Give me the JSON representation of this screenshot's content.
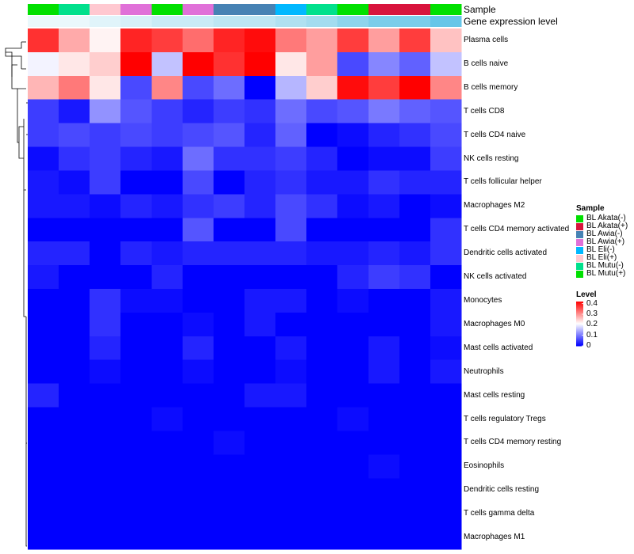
{
  "chart_data": {
    "type": "heatmap",
    "title": "",
    "colormap": [
      "#0000FF",
      "#FFFFFF",
      "#FF0000"
    ],
    "annotations": [
      {
        "label": "Sample"
      },
      {
        "label": "Gene expression level"
      }
    ],
    "columns": [
      {
        "sample_color": "#00E000",
        "level_color": "#EAF8FC"
      },
      {
        "sample_color": "#00E08C",
        "level_color": "#EAF8FC"
      },
      {
        "sample_color": "#FFC8D0",
        "level_color": "#E0F4FA"
      },
      {
        "sample_color": "#E070D8",
        "level_color": "#D6F0F8"
      },
      {
        "sample_color": "#00E000",
        "level_color": "#C9EBF6"
      },
      {
        "sample_color": "#E070D8",
        "level_color": "#C9EBF6"
      },
      {
        "sample_color": "#4682B4",
        "level_color": "#BDE6F3"
      },
      {
        "sample_color": "#4682B4",
        "level_color": "#BDE6F3"
      },
      {
        "sample_color": "#00B8FF",
        "level_color": "#B0E1F1"
      },
      {
        "sample_color": "#00E08C",
        "level_color": "#A4DCEF"
      },
      {
        "sample_color": "#00E000",
        "level_color": "#8FD4EC"
      },
      {
        "sample_color": "#D8143C",
        "level_color": "#7CCDEA"
      },
      {
        "sample_color": "#D8143C",
        "level_color": "#7CCDEA"
      },
      {
        "sample_color": "#00E000",
        "level_color": "#66C6E8"
      }
    ],
    "rows": [
      "Plasma cells",
      "B cells naive",
      "B cells memory",
      "T cells CD8",
      "T cells CD4 naive",
      "NK cells resting",
      "T cells follicular helper",
      "Macrophages M2",
      "T cells CD4 memory activated",
      "Dendritic cells activated",
      "NK cells activated",
      "Monocytes",
      "Macrophages M0",
      "Mast cells activated",
      "Neutrophils",
      "Mast cells resting",
      "T cells regulatory  Tregs",
      "T cells CD4 memory resting",
      "Eosinophils",
      "Dendritic cells resting",
      "T cells gamma delta",
      "Macrophages M1"
    ],
    "values": [
      [
        0.38,
        0.28,
        0.22,
        0.39,
        0.37,
        0.33,
        0.39,
        0.41,
        0.32,
        0.29,
        0.37,
        0.29,
        0.37,
        0.26
      ],
      [
        0.2,
        0.23,
        0.25,
        0.42,
        0.16,
        0.42,
        0.38,
        0.42,
        0.23,
        0.29,
        0.06,
        0.11,
        0.08,
        0.16
      ],
      [
        0.27,
        0.32,
        0.23,
        0.06,
        0.31,
        0.06,
        0.09,
        0.0,
        0.15,
        0.25,
        0.41,
        0.37,
        0.42,
        0.31
      ],
      [
        0.05,
        0.02,
        0.12,
        0.07,
        0.05,
        0.03,
        0.05,
        0.04,
        0.09,
        0.06,
        0.07,
        0.1,
        0.08,
        0.07
      ],
      [
        0.05,
        0.06,
        0.05,
        0.06,
        0.05,
        0.06,
        0.07,
        0.03,
        0.08,
        0.0,
        0.01,
        0.03,
        0.04,
        0.06
      ],
      [
        0.01,
        0.04,
        0.05,
        0.03,
        0.02,
        0.09,
        0.04,
        0.04,
        0.05,
        0.03,
        0.0,
        0.01,
        0.01,
        0.05
      ],
      [
        0.02,
        0.01,
        0.05,
        0.0,
        0.0,
        0.06,
        0.0,
        0.03,
        0.04,
        0.02,
        0.02,
        0.04,
        0.03,
        0.03
      ],
      [
        0.02,
        0.02,
        0.01,
        0.03,
        0.02,
        0.04,
        0.05,
        0.03,
        0.06,
        0.04,
        0.01,
        0.02,
        0.0,
        0.01
      ],
      [
        0.0,
        0.0,
        0.0,
        0.0,
        0.0,
        0.07,
        0.0,
        0.0,
        0.06,
        0.0,
        0.0,
        0.0,
        0.0,
        0.04
      ],
      [
        0.03,
        0.03,
        0.0,
        0.03,
        0.02,
        0.03,
        0.03,
        0.03,
        0.03,
        0.02,
        0.02,
        0.03,
        0.02,
        0.04
      ],
      [
        0.02,
        0.0,
        0.0,
        0.0,
        0.03,
        0.0,
        0.0,
        0.0,
        0.0,
        0.0,
        0.03,
        0.05,
        0.04,
        0.0
      ],
      [
        0.0,
        0.0,
        0.04,
        0.01,
        0.01,
        0.0,
        0.0,
        0.02,
        0.02,
        0.0,
        0.01,
        0.0,
        0.0,
        0.02
      ],
      [
        0.0,
        0.0,
        0.04,
        0.0,
        0.0,
        0.01,
        0.0,
        0.02,
        0.0,
        0.0,
        0.0,
        0.0,
        0.0,
        0.02
      ],
      [
        0.0,
        0.0,
        0.03,
        0.0,
        0.0,
        0.03,
        0.0,
        0.0,
        0.02,
        0.0,
        0.0,
        0.02,
        0.0,
        0.01
      ],
      [
        0.0,
        0.0,
        0.01,
        0.0,
        0.0,
        0.01,
        0.0,
        0.0,
        0.01,
        0.0,
        0.0,
        0.02,
        0.0,
        0.02
      ],
      [
        0.03,
        0.0,
        0.0,
        0.0,
        0.0,
        0.0,
        0.0,
        0.02,
        0.02,
        0.0,
        0.0,
        0.0,
        0.0,
        0.0
      ],
      [
        0.0,
        0.0,
        0.0,
        0.0,
        0.01,
        0.0,
        0.0,
        0.0,
        0.0,
        0.0,
        0.01,
        0.0,
        0.0,
        0.0
      ],
      [
        0.0,
        0.0,
        0.0,
        0.0,
        0.0,
        0.0,
        0.01,
        0.0,
        0.0,
        0.0,
        0.0,
        0.0,
        0.0,
        0.0
      ],
      [
        0.0,
        0.0,
        0.0,
        0.0,
        0.0,
        0.0,
        0.0,
        0.0,
        0.0,
        0.0,
        0.0,
        0.01,
        0.0,
        0.0
      ],
      [
        0.0,
        0.0,
        0.0,
        0.0,
        0.0,
        0.0,
        0.0,
        0.0,
        0.0,
        0.0,
        0.0,
        0.0,
        0.0,
        0.0
      ],
      [
        0.0,
        0.0,
        0.0,
        0.0,
        0.0,
        0.0,
        0.0,
        0.0,
        0.0,
        0.0,
        0.0,
        0.0,
        0.0,
        0.0
      ],
      [
        0.0,
        0.0,
        0.0,
        0.0,
        0.0,
        0.0,
        0.0,
        0.0,
        0.0,
        0.0,
        0.0,
        0.0,
        0.0,
        0.0
      ]
    ],
    "value_range": [
      0,
      0.42
    ],
    "legend_sample": {
      "title": "Sample",
      "items": [
        {
          "label": "BL Akata(-)",
          "color": "#00E000"
        },
        {
          "label": "BL Akata(+)",
          "color": "#D8143C"
        },
        {
          "label": "BL Awia(-)",
          "color": "#4682B4"
        },
        {
          "label": "BL Awia(+)",
          "color": "#E070D8"
        },
        {
          "label": "BL Eli(-)",
          "color": "#00B8FF"
        },
        {
          "label": "BL Eli(+)",
          "color": "#FFC8D0"
        },
        {
          "label": "BL Mutu(-)",
          "color": "#00E08C"
        },
        {
          "label": "BL Mutu(+)",
          "color": "#00E000"
        }
      ]
    },
    "legend_level": {
      "title": "Level",
      "ticks": [
        "0.4",
        "0.3",
        "0.2",
        "0.1",
        "0"
      ],
      "tick_values": [
        0.4,
        0.3,
        0.2,
        0.1,
        0
      ]
    },
    "dendrogram": "rows"
  }
}
